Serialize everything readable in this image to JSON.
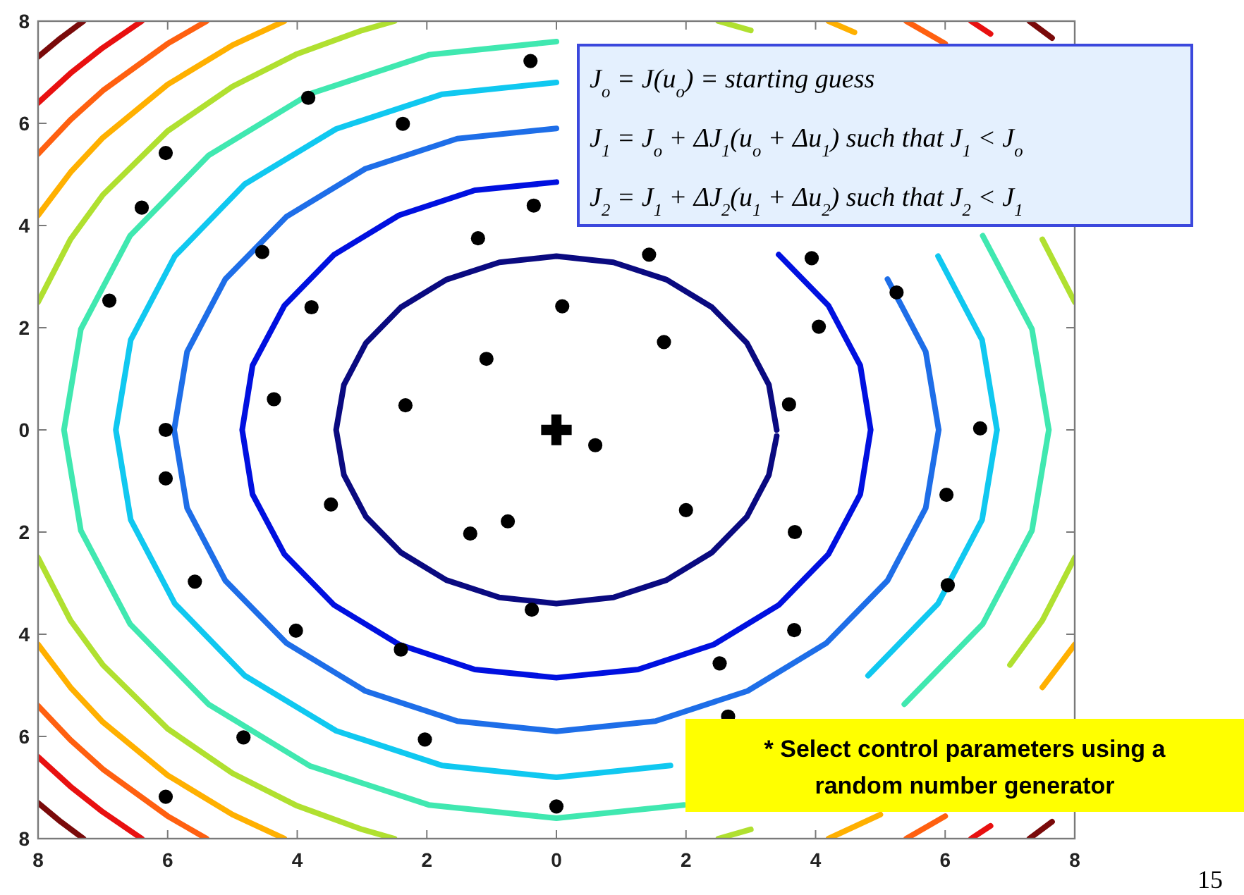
{
  "chart_data": {
    "type": "scatter",
    "xlim": [
      -8,
      8
    ],
    "ylim": [
      -8,
      8
    ],
    "xticks": [
      {
        "value": -8,
        "label": "8"
      },
      {
        "value": -6,
        "label": "6"
      },
      {
        "value": -4,
        "label": "4"
      },
      {
        "value": -2,
        "label": "2"
      },
      0,
      2,
      4,
      6,
      8
    ],
    "yticks": [
      {
        "value": -8,
        "label": "8"
      },
      {
        "value": -6,
        "label": "6"
      },
      {
        "value": -4,
        "label": "4"
      },
      {
        "value": -2,
        "label": "2"
      },
      0,
      2,
      4,
      6,
      8
    ],
    "annotations": [
      "J$_{o}$ = J(u$_{o}$) = starting guess",
      "J$_{1}$ = J$_{o}$ + ΔJ$_{1}$(u$_{o}$ + Δu$_{1}$) such that   J$_{1}$ < J$_{o}$",
      "J$_{2}$ = J$_{1}$ + ΔJ$_{2}$(u$_{1}$ + Δu$_{2}$) such that   J$_{2}$ < J$_{1}$",
      "* Select control parameters using a random number generator",
      "15"
    ],
    "series": [
      {
        "type": "line",
        "color": "#0a0a80",
        "x": [
          3.4,
          3.28,
          2.94,
          2.4,
          1.7,
          0.88,
          0,
          -0.88,
          -1.7,
          -2.4,
          -2.94,
          -3.28,
          -3.4,
          -3.28,
          -2.94,
          -2.4,
          -1.7,
          -0.88,
          0,
          0.88,
          1.7,
          2.4,
          2.94,
          3.28,
          3.4
        ],
        "values": [
          0,
          0.88,
          1.7,
          2.4,
          2.94,
          3.28,
          3.4,
          3.28,
          2.94,
          2.4,
          1.7,
          0.88,
          0,
          -0.88,
          -1.7,
          -2.4,
          -2.94,
          -3.28,
          -3.4,
          -3.28,
          -2.94,
          -2.4,
          -1.7,
          -0.88,
          -0.12
        ]
      },
      {
        "type": "line",
        "color": "#0010e0",
        "x": [
          4.85,
          4.69,
          4.2,
          3.43,
          2.43,
          1.26,
          0,
          -1.26,
          -2.43,
          -3.43,
          -4.2,
          -4.69,
          -4.85,
          -4.69,
          -4.2,
          -3.43,
          -2.43,
          -1.26,
          0,
          1.26,
          2.43,
          3.43,
          4.2,
          4.69,
          4.85
        ],
        "values": [
          0,
          1.26,
          2.43,
          3.43,
          null,
          null,
          4.85,
          4.69,
          4.2,
          3.43,
          2.43,
          1.26,
          0,
          -1.26,
          -2.43,
          -3.43,
          -4.2,
          -4.69,
          -4.85,
          -4.69,
          -4.2,
          -3.43,
          -2.43,
          -1.26,
          0
        ]
      },
      {
        "type": "line",
        "color": "#1e6ee8",
        "x": [
          5.9,
          5.7,
          5.11,
          4.17,
          2.95,
          1.53,
          0,
          -1.53,
          -2.95,
          -4.17,
          -5.11,
          -5.7,
          -5.9,
          -5.7,
          -5.11,
          -4.17,
          -2.95,
          -1.53,
          0,
          1.53,
          2.95,
          4.17,
          5.11,
          5.7,
          5.9
        ],
        "values": [
          0,
          1.53,
          2.95,
          null,
          null,
          null,
          5.9,
          5.7,
          5.11,
          4.17,
          2.95,
          1.53,
          0,
          -1.53,
          -2.95,
          -4.17,
          -5.11,
          -5.7,
          -5.9,
          -5.7,
          -5.11,
          -4.17,
          -2.95,
          -1.53,
          0
        ]
      },
      {
        "type": "line",
        "color": "#10c8f0",
        "x": [
          6.8,
          6.57,
          5.89,
          4.81,
          3.4,
          1.76,
          0,
          -1.76,
          -3.4,
          -4.81,
          -5.89,
          -6.57,
          -6.8,
          -6.57,
          -5.89,
          -4.81,
          -3.4,
          -1.76,
          0,
          1.76,
          3.4,
          4.81,
          5.89,
          6.57,
          6.8
        ],
        "values": [
          0,
          1.76,
          3.4,
          null,
          null,
          null,
          6.8,
          6.57,
          5.89,
          4.81,
          3.4,
          1.76,
          0,
          -1.76,
          -3.4,
          -4.81,
          -5.89,
          -6.57,
          -6.8,
          -6.57,
          null,
          -4.81,
          -3.4,
          -1.76,
          0
        ]
      },
      {
        "type": "line",
        "color": "#40e8b0",
        "x": [
          7.6,
          7.34,
          6.58,
          5.37,
          3.8,
          1.97,
          0,
          -1.97,
          -3.8,
          -5.37,
          -6.58,
          -7.34,
          -7.6,
          -7.34,
          -6.58,
          -5.37,
          -3.8,
          -1.97,
          0,
          1.97,
          3.8,
          5.37,
          6.58,
          7.34,
          7.6
        ],
        "values": [
          0,
          1.97,
          3.8,
          null,
          null,
          null,
          7.6,
          7.34,
          6.58,
          5.37,
          3.8,
          1.97,
          0,
          -1.97,
          -3.8,
          -5.37,
          -6.58,
          -7.34,
          -7.6,
          -7.34,
          null,
          -5.37,
          -3.8,
          -1.97,
          0
        ]
      },
      {
        "type": "line",
        "color": "#b0e030",
        "x": [
          -8,
          -7.5,
          -7,
          -6,
          -5,
          -4,
          -3,
          -2.5
        ],
        "values": [
          2.5,
          3.73,
          4.6,
          5.85,
          6.72,
          7.36,
          7.82,
          8
        ]
      },
      {
        "type": "line",
        "color": "#b0e030",
        "x": [
          8,
          7.5,
          7,
          6,
          5,
          4,
          3,
          2.5
        ],
        "values": [
          2.5,
          3.73,
          null,
          null,
          null,
          null,
          7.82,
          8
        ]
      },
      {
        "type": "line",
        "color": "#b0e030",
        "x": [
          -8,
          -7.5,
          -7,
          -6,
          -5,
          -4,
          -3,
          -2.5
        ],
        "values": [
          -2.5,
          -3.73,
          -4.6,
          -5.85,
          -6.72,
          -7.36,
          -7.82,
          -8
        ]
      },
      {
        "type": "line",
        "color": "#b0e030",
        "x": [
          8,
          7.5,
          7,
          6,
          5,
          4,
          3,
          2.5
        ],
        "values": [
          -2.5,
          -3.73,
          -4.6,
          null,
          null,
          null,
          -7.82,
          -8
        ]
      },
      {
        "type": "line",
        "color": "#ffb000",
        "x": [
          -8,
          -7.5,
          -7,
          -6,
          -5,
          -4.2
        ],
        "values": [
          4.2,
          5.04,
          5.72,
          6.76,
          7.53,
          8
        ]
      },
      {
        "type": "line",
        "color": "#ffb000",
        "x": [
          4.6,
          4.2
        ],
        "values": [
          7.78,
          8
        ]
      },
      {
        "type": "line",
        "color": "#ffb000",
        "x": [
          -8,
          -7.5,
          -7,
          -6,
          -5,
          -4.2
        ],
        "values": [
          -4.2,
          -5.04,
          -5.72,
          -6.76,
          -7.53,
          -8
        ]
      },
      {
        "type": "line",
        "color": "#ffb000",
        "x": [
          8,
          7.5,
          7,
          6,
          5,
          4.2
        ],
        "values": [
          -4.2,
          -5.04,
          null,
          null,
          -7.53,
          -8
        ]
      },
      {
        "type": "line",
        "color": "#ff6010",
        "x": [
          -8,
          -7.5,
          -7,
          -6,
          -5.4
        ],
        "values": [
          5.4,
          6.07,
          6.64,
          7.56,
          8
        ]
      },
      {
        "type": "line",
        "color": "#ff6010",
        "x": [
          6,
          5.4
        ],
        "values": [
          7.56,
          8
        ]
      },
      {
        "type": "line",
        "color": "#ff6010",
        "x": [
          -8,
          -7.5,
          -7,
          -6,
          -5.4
        ],
        "values": [
          -5.4,
          -6.07,
          -6.64,
          -7.56,
          -8
        ]
      },
      {
        "type": "line",
        "color": "#ff6010",
        "x": [
          6,
          5.4
        ],
        "values": [
          -7.56,
          -8
        ]
      },
      {
        "type": "line",
        "color": "#e81010",
        "x": [
          -8,
          -7.5,
          -7,
          -6.4
        ],
        "values": [
          6.4,
          6.98,
          7.48,
          8
        ]
      },
      {
        "type": "line",
        "color": "#e81010",
        "x": [
          6.7,
          6.4
        ],
        "values": [
          7.75,
          8
        ]
      },
      {
        "type": "line",
        "color": "#e81010",
        "x": [
          -8,
          -7.5,
          -7,
          -6.4
        ],
        "values": [
          -6.4,
          -6.98,
          -7.48,
          -8
        ]
      },
      {
        "type": "line",
        "color": "#e81010",
        "x": [
          6.7,
          6.4
        ],
        "values": [
          -7.75,
          -8
        ]
      },
      {
        "type": "line",
        "color": "#7a0a0a",
        "x": [
          -8,
          -7.65,
          -7.3
        ],
        "values": [
          7.3,
          7.67,
          8
        ]
      },
      {
        "type": "line",
        "color": "#7a0a0a",
        "x": [
          7.65,
          7.3
        ],
        "values": [
          7.67,
          8
        ]
      },
      {
        "type": "line",
        "color": "#7a0a0a",
        "x": [
          -8,
          -7.65,
          -7.3
        ],
        "values": [
          -7.3,
          -7.67,
          -8
        ]
      },
      {
        "type": "line",
        "color": "#7a0a0a",
        "x": [
          7.65,
          7.3
        ],
        "values": [
          -7.67,
          -8
        ]
      },
      {
        "marker": "circle",
        "color": "#000000",
        "x": [
          -0.4,
          -3.83,
          -2.37,
          -6.03,
          -6.4,
          -4.54,
          -0.35,
          -1.21,
          -6.9,
          -3.78,
          0.09,
          -1.08,
          -4.36,
          -2.33,
          -6.03,
          1.43,
          3.94,
          5.25,
          4.05,
          1.66,
          3.59,
          6.54,
          0.6,
          -6.03,
          -3.48,
          -0.75,
          -1.33,
          -5.58,
          -0.38,
          -4.02,
          -2.4,
          -4.83,
          -2.03,
          -6.03,
          0,
          2.0,
          3.68,
          6.02,
          6.04,
          3.67,
          2.52,
          2.65
        ],
        "values": [
          7.22,
          6.5,
          5.99,
          5.42,
          4.35,
          3.48,
          4.39,
          3.75,
          2.53,
          2.4,
          2.42,
          1.39,
          0.6,
          0.48,
          0,
          3.43,
          3.36,
          2.69,
          2.02,
          1.72,
          0.5,
          0.03,
          -0.3,
          -0.95,
          -1.46,
          -1.79,
          -2.03,
          -2.97,
          -3.52,
          -3.93,
          -4.3,
          -6.02,
          -6.06,
          -7.18,
          -7.37,
          -1.57,
          -2.0,
          -1.27,
          -3.04,
          -3.92,
          -4.57,
          -5.61
        ]
      },
      {
        "marker": "cross",
        "color": "#000000",
        "x": [
          0
        ],
        "values": [
          0
        ]
      }
    ]
  }
}
